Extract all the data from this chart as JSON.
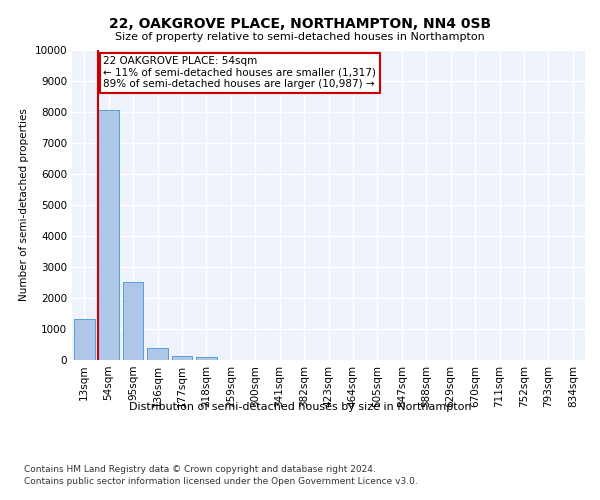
{
  "title": "22, OAKGROVE PLACE, NORTHAMPTON, NN4 0SB",
  "subtitle": "Size of property relative to semi-detached houses in Northampton",
  "xlabel": "Distribution of semi-detached houses by size in Northampton",
  "ylabel": "Number of semi-detached properties",
  "footnote1": "Contains HM Land Registry data © Crown copyright and database right 2024.",
  "footnote2": "Contains public sector information licensed under the Open Government Licence v3.0.",
  "annotation_title": "22 OAKGROVE PLACE: 54sqm",
  "annotation_line1": "← 11% of semi-detached houses are smaller (1,317)",
  "annotation_line2": "89% of semi-detached houses are larger (10,987) →",
  "property_size_sqm": 54,
  "bar_categories": [
    "13sqm",
    "54sqm",
    "95sqm",
    "136sqm",
    "177sqm",
    "218sqm",
    "259sqm",
    "300sqm",
    "341sqm",
    "382sqm",
    "423sqm",
    "464sqm",
    "505sqm",
    "547sqm",
    "588sqm",
    "629sqm",
    "670sqm",
    "711sqm",
    "752sqm",
    "793sqm",
    "834sqm"
  ],
  "bar_values": [
    1317,
    8050,
    2520,
    380,
    140,
    90,
    0,
    0,
    0,
    0,
    0,
    0,
    0,
    0,
    0,
    0,
    0,
    0,
    0,
    0,
    0
  ],
  "bar_color": "#aec6e8",
  "bar_edge_color": "#5a9fd4",
  "highlight_line_color": "#cc0000",
  "ylim": [
    0,
    10000
  ],
  "yticks": [
    0,
    1000,
    2000,
    3000,
    4000,
    5000,
    6000,
    7000,
    8000,
    9000,
    10000
  ],
  "background_color": "#eef2fb",
  "grid_color": "#ffffff",
  "annotation_box_edge": "#cc0000",
  "title_fontsize": 10,
  "subtitle_fontsize": 8,
  "ylabel_fontsize": 7.5,
  "tick_fontsize": 7.5,
  "annotation_fontsize": 7.5,
  "xlabel_fontsize": 8,
  "footnote_fontsize": 6.5
}
